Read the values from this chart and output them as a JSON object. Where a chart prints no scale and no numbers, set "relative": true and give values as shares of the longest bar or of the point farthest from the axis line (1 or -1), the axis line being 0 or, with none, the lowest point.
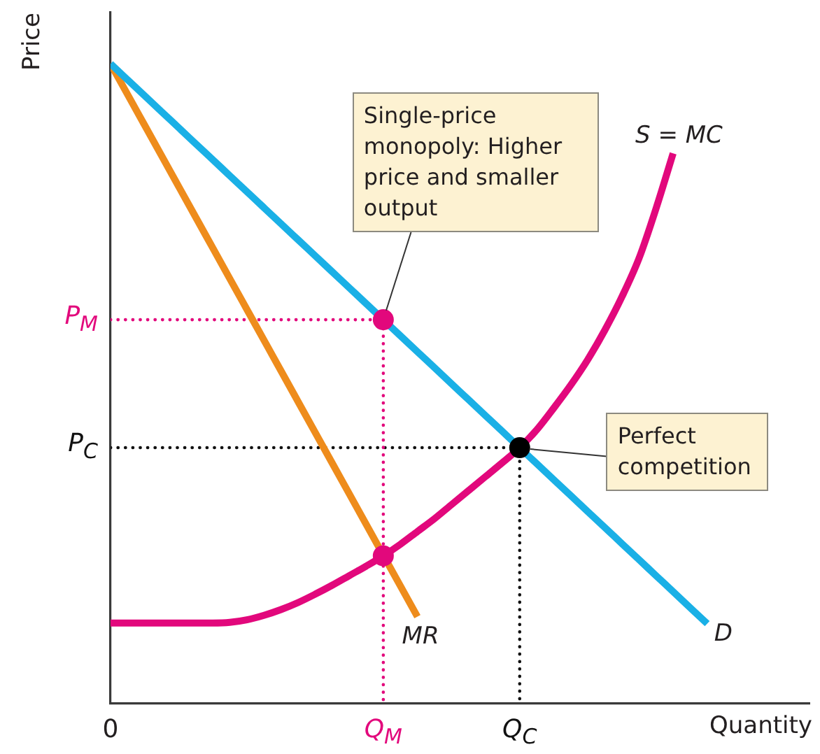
{
  "chart_data": {
    "type": "line",
    "relative": true,
    "xlabel": "Quantity",
    "ylabel": "Price",
    "categories": [
      "0",
      null,
      null,
      null,
      null,
      null,
      null,
      null,
      null,
      null,
      null,
      null,
      null,
      null,
      null,
      null,
      "Q$_{M}$",
      null,
      null,
      null,
      null,
      null,
      null,
      null,
      "Q$_{C}$",
      null,
      null,
      null,
      null,
      null,
      null,
      null,
      null,
      null,
      null,
      null,
      null,
      null,
      null,
      null,
      null,
      null
    ],
    "series": [
      {
        "name": "D",
        "color": "#1ab0e6",
        "values": [
          1,
          0.975,
          0.95,
          0.925,
          0.9,
          0.875,
          0.85,
          0.825,
          0.8,
          0.775,
          0.75,
          0.725,
          0.7,
          0.675,
          0.65,
          0.625,
          0.6,
          0.575,
          0.55,
          0.525,
          0.5,
          0.475,
          0.45,
          0.425,
          0.4,
          0.375,
          0.35,
          0.325,
          0.3,
          0.275,
          0.25,
          0.225,
          0.2,
          0.175,
          0.15,
          0.125,
          null,
          null,
          null,
          null,
          null,
          null
        ]
      },
      {
        "name": "MR",
        "color": "#ee8c1c",
        "values": [
          1,
          0.952,
          0.904,
          0.856,
          0.808,
          0.76,
          0.712,
          0.664,
          0.616,
          0.568,
          0.52,
          0.472,
          0.424,
          0.376,
          0.328,
          0.28,
          0.232,
          0.184,
          0.136,
          null,
          null,
          null,
          null,
          null,
          null,
          null,
          null,
          null,
          null,
          null,
          null,
          null,
          null,
          null,
          null,
          null,
          null,
          null,
          null,
          null,
          null,
          null
        ]
      },
      {
        "name": "S = MC",
        "color": "#e2087c",
        "values": [
          0.126,
          0.126,
          0.126,
          0.126,
          0.126,
          0.126,
          0.126,
          0.127,
          0.131,
          0.138,
          0.147,
          0.158,
          0.171,
          0.185,
          0.2,
          0.215,
          0.231,
          0.249,
          0.269,
          0.289,
          0.311,
          0.333,
          0.355,
          0.377,
          0.4,
          0.428,
          0.462,
          0.498,
          0.538,
          0.584,
          0.636,
          0.696,
          0.774,
          0.86,
          null,
          null,
          null,
          null,
          null,
          null,
          null,
          null
        ]
      },
      {
        "color": "#e2087c",
        "line_style": "dotted",
        "x": [
          "0",
          "Q$_{M}$",
          "Q$_{M}$"
        ],
        "values": [
          0.6,
          0.6,
          0
        ]
      },
      {
        "color": "#111111",
        "line_style": "dotted",
        "x": [
          "0",
          "Q$_{C}$",
          "Q$_{C}$"
        ],
        "values": [
          0.4,
          0.4,
          0
        ]
      },
      {
        "type": "scatter",
        "marker": "circle",
        "colors": [
          "#e2087c",
          "#e2087c",
          "#000000"
        ],
        "x": [
          "Q$_{M}$",
          "Q$_{M}$",
          "Q$_{C}$"
        ],
        "values": [
          0.6,
          0.231,
          0.4
        ]
      }
    ],
    "annotations": [
      {
        "text": "P$_{M}$",
        "x": "0",
        "y": 0.6
      },
      {
        "text": "P$_{C}$",
        "x": "0",
        "y": 0.4
      },
      {
        "text": "Single-price monopoly: Higher price and smaller output",
        "x": "Q$_{M}$",
        "y": 0.6
      },
      {
        "text": "Perfect competition",
        "x": "Q$_{C}$",
        "y": 0.4
      }
    ]
  }
}
